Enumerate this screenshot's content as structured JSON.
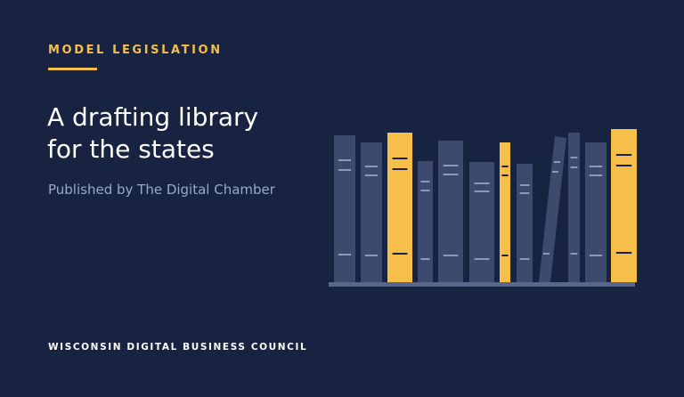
{
  "header": {
    "eyebrow": "MODEL LEGISLATION",
    "title_line1": "A drafting library",
    "title_line2": "for the states",
    "subtitle": "Published by The Digital Chamber"
  },
  "footer": {
    "org": "WISCONSIN DIGITAL BUSINESS COUNCIL"
  },
  "colors": {
    "background": "#172341",
    "accent": "#f5bf4a",
    "book": "#3b4a6d",
    "shelf": "#56678b"
  },
  "illustration": {
    "icon": "bookshelf-icon"
  }
}
